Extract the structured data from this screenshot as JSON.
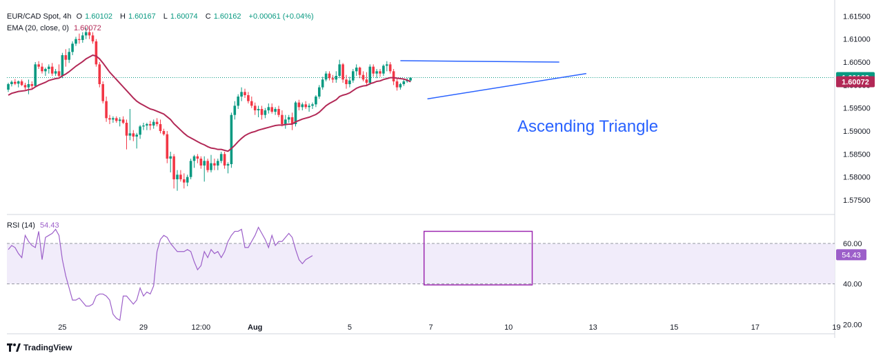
{
  "header": {
    "symbol": "EUR/CAD Spot, 4h",
    "ohlc": [
      {
        "label": "O",
        "value": "1.60102"
      },
      {
        "label": "H",
        "value": "1.60167"
      },
      {
        "label": "L",
        "value": "1.60074"
      },
      {
        "label": "C",
        "value": "1.60162"
      }
    ],
    "change": "+0.00061 (+0.04%)",
    "ema_label": "EMA (20, close, 0)",
    "ema_value": "1.60072",
    "rsi_label": "RSI (14)",
    "rsi_value": "54.43"
  },
  "annotation": "Ascending Triangle",
  "branding": "TradingView",
  "colors": {
    "up": "#089981",
    "down": "#f23645",
    "ema": "#b22856",
    "trend": "#2962ff",
    "rsi": "#9c5fc9",
    "rsi_band": "#f1ecfa",
    "box": "#9c27b0"
  },
  "chart_data": [
    {
      "type": "candlestick",
      "title": "EUR/CAD Spot, 4h",
      "y_ticks": [
        "1.61500",
        "1.61000",
        "1.60500",
        "1.60000",
        "1.59500",
        "1.59000",
        "1.58500",
        "1.58000",
        "1.57500"
      ],
      "ylim": [
        1.572,
        1.617
      ],
      "x_ticks": [
        {
          "label": "25",
          "i": 16
        },
        {
          "label": "29",
          "i": 40
        },
        {
          "label": "12:00",
          "i": 57
        },
        {
          "label": "Aug",
          "i": 73
        },
        {
          "label": "5",
          "i": 101
        },
        {
          "label": "7",
          "i": 125
        },
        {
          "label": "10",
          "i": 148
        },
        {
          "label": "13",
          "i": 173
        },
        {
          "label": "15",
          "i": 197
        },
        {
          "label": "17",
          "i": 221
        },
        {
          "label": "19",
          "i": 245
        }
      ],
      "last_price": "1.60162",
      "ema_last": "1.60072",
      "candles": [
        [
          1.599,
          1.6005,
          1.5985,
          1.6002
        ],
        [
          1.6002,
          1.601,
          1.5997,
          1.6007
        ],
        [
          1.6007,
          1.6013,
          1.6,
          1.6003
        ],
        [
          1.6003,
          1.601,
          1.5995,
          1.6008
        ],
        [
          1.6008,
          1.6012,
          1.5998,
          1.6
        ],
        [
          1.6,
          1.6005,
          1.599,
          1.5995
        ],
        [
          1.5995,
          1.6012,
          1.598,
          1.6002
        ],
        [
          1.6002,
          1.6008,
          1.599,
          1.5998
        ],
        [
          1.5998,
          1.605,
          1.5995,
          1.6045
        ],
        [
          1.6045,
          1.6052,
          1.6035,
          1.604
        ],
        [
          1.604,
          1.6048,
          1.6025,
          1.603
        ],
        [
          1.603,
          1.6038,
          1.602,
          1.6035
        ],
        [
          1.6035,
          1.6045,
          1.6025,
          1.604
        ],
        [
          1.604,
          1.6048,
          1.602,
          1.6025
        ],
        [
          1.6025,
          1.6035,
          1.602,
          1.603
        ],
        [
          1.603,
          1.6045,
          1.6015,
          1.602
        ],
        [
          1.602,
          1.607,
          1.6015,
          1.6065
        ],
        [
          1.6065,
          1.6078,
          1.604,
          1.6055
        ],
        [
          1.6055,
          1.608,
          1.6048,
          1.6072
        ],
        [
          1.6072,
          1.6095,
          1.6065,
          1.609
        ],
        [
          1.609,
          1.6105,
          1.6085,
          1.61
        ],
        [
          1.61,
          1.6112,
          1.609,
          1.6098
        ],
        [
          1.6098,
          1.6115,
          1.6092,
          1.6108
        ],
        [
          1.6108,
          1.6125,
          1.61,
          1.6115
        ],
        [
          1.6115,
          1.6125,
          1.61,
          1.6108
        ],
        [
          1.6108,
          1.6115,
          1.609,
          1.6095
        ],
        [
          1.6095,
          1.61,
          1.604,
          1.6045
        ],
        [
          1.6045,
          1.605,
          1.5995,
          1.6002
        ],
        [
          1.6002,
          1.6008,
          1.596,
          1.5965
        ],
        [
          1.5965,
          1.5975,
          1.592,
          1.5928
        ],
        [
          1.5928,
          1.5935,
          1.5915,
          1.5925
        ],
        [
          1.5925,
          1.5932,
          1.5918,
          1.5928
        ],
        [
          1.5928,
          1.5932,
          1.5918,
          1.5922
        ],
        [
          1.5922,
          1.593,
          1.591,
          1.5925
        ],
        [
          1.5925,
          1.5932,
          1.5915,
          1.5918
        ],
        [
          1.5918,
          1.5925,
          1.586,
          1.589
        ],
        [
          1.589,
          1.5948,
          1.588,
          1.5895
        ],
        [
          1.5895,
          1.5902,
          1.5878,
          1.5888
        ],
        [
          1.5888,
          1.5896,
          1.5862,
          1.5892
        ],
        [
          1.5892,
          1.5913,
          1.5883,
          1.591
        ],
        [
          1.591,
          1.5918,
          1.5902,
          1.5912
        ],
        [
          1.5912,
          1.5918,
          1.5902,
          1.5915
        ],
        [
          1.5915,
          1.5922,
          1.5902,
          1.5912
        ],
        [
          1.5912,
          1.5925,
          1.5905,
          1.592
        ],
        [
          1.592,
          1.5928,
          1.591,
          1.5915
        ],
        [
          1.5915,
          1.5925,
          1.5895,
          1.59
        ],
        [
          1.59,
          1.5905,
          1.589,
          1.5893
        ],
        [
          1.5893,
          1.59,
          1.583,
          1.584
        ],
        [
          1.584,
          1.5855,
          1.581,
          1.5845
        ],
        [
          1.5845,
          1.585,
          1.5775,
          1.5795
        ],
        [
          1.5795,
          1.5815,
          1.577,
          1.5805
        ],
        [
          1.5805,
          1.5815,
          1.579,
          1.5795
        ],
        [
          1.5795,
          1.5808,
          1.5775,
          1.5788
        ],
        [
          1.5788,
          1.5805,
          1.578,
          1.58
        ],
        [
          1.58,
          1.584,
          1.5795,
          1.5835
        ],
        [
          1.5835,
          1.5848,
          1.582,
          1.5845
        ],
        [
          1.5845,
          1.585,
          1.583,
          1.584
        ],
        [
          1.584,
          1.5845,
          1.5818,
          1.5825
        ],
        [
          1.5825,
          1.5845,
          1.579,
          1.5835
        ],
        [
          1.5835,
          1.584,
          1.581,
          1.5815
        ],
        [
          1.5815,
          1.5848,
          1.581,
          1.583
        ],
        [
          1.583,
          1.584,
          1.5815,
          1.5825
        ],
        [
          1.5825,
          1.584,
          1.5815,
          1.5835
        ],
        [
          1.5835,
          1.5855,
          1.583,
          1.585
        ],
        [
          1.585,
          1.5855,
          1.5818,
          1.5825
        ],
        [
          1.5825,
          1.5832,
          1.5808,
          1.5828
        ],
        [
          1.5828,
          1.594,
          1.582,
          1.5935
        ],
        [
          1.5935,
          1.5965,
          1.5925,
          1.5955
        ],
        [
          1.5955,
          1.598,
          1.5948,
          1.5975
        ],
        [
          1.5975,
          1.5995,
          1.5965,
          1.5985
        ],
        [
          1.5985,
          1.5992,
          1.5972,
          1.5978
        ],
        [
          1.5978,
          1.5985,
          1.596,
          1.5965
        ],
        [
          1.5965,
          1.5975,
          1.595,
          1.5955
        ],
        [
          1.5955,
          1.5962,
          1.5935,
          1.5945
        ],
        [
          1.5945,
          1.5955,
          1.593,
          1.5948
        ],
        [
          1.5948,
          1.5955,
          1.5925,
          1.5935
        ],
        [
          1.5935,
          1.595,
          1.5928,
          1.5945
        ],
        [
          1.5945,
          1.596,
          1.5938,
          1.5952
        ],
        [
          1.5952,
          1.596,
          1.5938,
          1.5942
        ],
        [
          1.5942,
          1.5952,
          1.5935,
          1.5948
        ],
        [
          1.5948,
          1.5955,
          1.593,
          1.5935
        ],
        [
          1.5935,
          1.5945,
          1.591,
          1.5915
        ],
        [
          1.5915,
          1.5935,
          1.5905,
          1.5925
        ],
        [
          1.5925,
          1.5935,
          1.5918,
          1.593
        ],
        [
          1.593,
          1.594,
          1.5902,
          1.5915
        ],
        [
          1.5915,
          1.5965,
          1.591,
          1.5962
        ],
        [
          1.5962,
          1.5968,
          1.5945,
          1.5952
        ],
        [
          1.5952,
          1.5962,
          1.5945,
          1.5958
        ],
        [
          1.5958,
          1.5965,
          1.5948,
          1.5952
        ],
        [
          1.5952,
          1.596,
          1.5942,
          1.5955
        ],
        [
          1.5955,
          1.5962,
          1.5948,
          1.5958
        ],
        [
          1.5958,
          1.5978,
          1.5952,
          1.5975
        ],
        [
          1.5975,
          1.6,
          1.597,
          1.5995
        ],
        [
          1.5995,
          1.6018,
          1.599,
          1.6012
        ],
        [
          1.6012,
          1.603,
          1.6008,
          1.6025
        ],
        [
          1.6025,
          1.603,
          1.601,
          1.6015
        ],
        [
          1.6015,
          1.6022,
          1.6005,
          1.6012
        ],
        [
          1.6012,
          1.603,
          1.6005,
          1.602
        ],
        [
          1.602,
          1.6055,
          1.6015,
          1.6045
        ],
        [
          1.6045,
          1.6048,
          1.6005,
          1.6012
        ],
        [
          1.6012,
          1.6022,
          1.5992,
          1.6002
        ],
        [
          1.6002,
          1.6018,
          1.5995,
          1.601
        ],
        [
          1.601,
          1.6035,
          1.6005,
          1.603
        ],
        [
          1.603,
          1.6045,
          1.602,
          1.6038
        ],
        [
          1.6038,
          1.604,
          1.6015,
          1.6022
        ],
        [
          1.6022,
          1.603,
          1.6008,
          1.6012
        ],
        [
          1.6012,
          1.6028,
          1.6,
          1.6005
        ],
        [
          1.6005,
          1.6045,
          1.6,
          1.604
        ],
        [
          1.604,
          1.6045,
          1.6018,
          1.6025
        ],
        [
          1.6025,
          1.6035,
          1.6015,
          1.603
        ],
        [
          1.603,
          1.6035,
          1.6018,
          1.6025
        ],
        [
          1.6025,
          1.6045,
          1.602,
          1.6042
        ],
        [
          1.6042,
          1.6052,
          1.603,
          1.6045
        ],
        [
          1.6045,
          1.605,
          1.6025,
          1.603
        ],
        [
          1.603,
          1.6035,
          1.6,
          1.6008
        ],
        [
          1.6008,
          1.6015,
          1.5988,
          1.5995
        ],
        [
          1.5995,
          1.6005,
          1.599,
          1.6002
        ],
        [
          1.6002,
          1.6012,
          1.5998,
          1.6008
        ],
        [
          1.6008,
          1.6016,
          1.6005,
          1.601
        ],
        [
          1.601,
          1.6017,
          1.6007,
          1.6016
        ]
      ],
      "ema": [
        1.5978,
        1.5982,
        1.5984,
        1.5986,
        1.5987,
        1.5988,
        1.599,
        1.5991,
        1.5996,
        1.6,
        1.6003,
        1.6006,
        1.601,
        1.6012,
        1.6014,
        1.6015,
        1.602,
        1.6024,
        1.6029,
        1.6035,
        1.6041,
        1.6046,
        1.6051,
        1.6057,
        1.6061,
        1.6065,
        1.6063,
        1.6057,
        1.6048,
        1.6038,
        1.6028,
        1.602,
        1.6012,
        1.6004,
        1.5996,
        1.5988,
        1.598,
        1.5972,
        1.5965,
        1.596,
        1.5956,
        1.5952,
        1.5948,
        1.5946,
        1.5943,
        1.594,
        1.5937,
        1.5931,
        1.5925,
        1.5916,
        1.5909,
        1.5902,
        1.5895,
        1.5889,
        1.5885,
        1.5881,
        1.5877,
        1.5873,
        1.587,
        1.5866,
        1.5863,
        1.5862,
        1.586,
        1.586,
        1.5858,
        1.5856,
        1.5862,
        1.5869,
        1.5877,
        1.5884,
        1.589,
        1.5894,
        1.5897,
        1.5899,
        1.5902,
        1.5904,
        1.5906,
        1.5908,
        1.591,
        1.5912,
        1.5913,
        1.5913,
        1.5914,
        1.5915,
        1.5915,
        1.592,
        1.5923,
        1.5926,
        1.5928,
        1.593,
        1.5933,
        1.5936,
        1.5941,
        1.5948,
        1.5955,
        1.596,
        1.5964,
        1.5968,
        1.5975,
        1.5978,
        1.598,
        1.5983,
        1.5988,
        1.5993,
        1.5996,
        1.5998,
        1.5999,
        1.6003,
        1.6005,
        1.6008,
        1.6009,
        1.6012,
        1.6014,
        1.6016,
        1.6016,
        1.6015,
        1.6014,
        1.6013,
        1.6011,
        1.6007
      ],
      "resistance": {
        "i1": 116,
        "v1": 1.6053,
        "i2": 163,
        "v2": 1.605
      },
      "support": {
        "i1": 124,
        "v1": 1.597,
        "i2": 171,
        "v2": 1.6025
      }
    },
    {
      "type": "line",
      "title": "RSI (14)",
      "y_ticks": [
        "60.00",
        "40.00",
        "20.00"
      ],
      "ylim": [
        16,
        74
      ],
      "band": [
        40,
        60
      ],
      "last_value": "54.43",
      "values": [
        57,
        59,
        58,
        55,
        53,
        64,
        61,
        59,
        58,
        66,
        52,
        63,
        64,
        65,
        67,
        64,
        52,
        44,
        38,
        32,
        32,
        33,
        31,
        29,
        29,
        30,
        34,
        35,
        35,
        34,
        32,
        25,
        23,
        22,
        34,
        34,
        32,
        30,
        32,
        38,
        34,
        36,
        35,
        39,
        56,
        62,
        64,
        63,
        60,
        58,
        56,
        56,
        56,
        57,
        56,
        51,
        47,
        49,
        56,
        53,
        57,
        55,
        56,
        53,
        56,
        61,
        64,
        66,
        66,
        67,
        58,
        58,
        61,
        64,
        68,
        65,
        62,
        58,
        64,
        59,
        61,
        61,
        63,
        65,
        63,
        57,
        52,
        50,
        52,
        53,
        54
      ],
      "box": {
        "i1": 123,
        "v1": 66,
        "i2": 155,
        "v2": 39.5
      }
    }
  ]
}
